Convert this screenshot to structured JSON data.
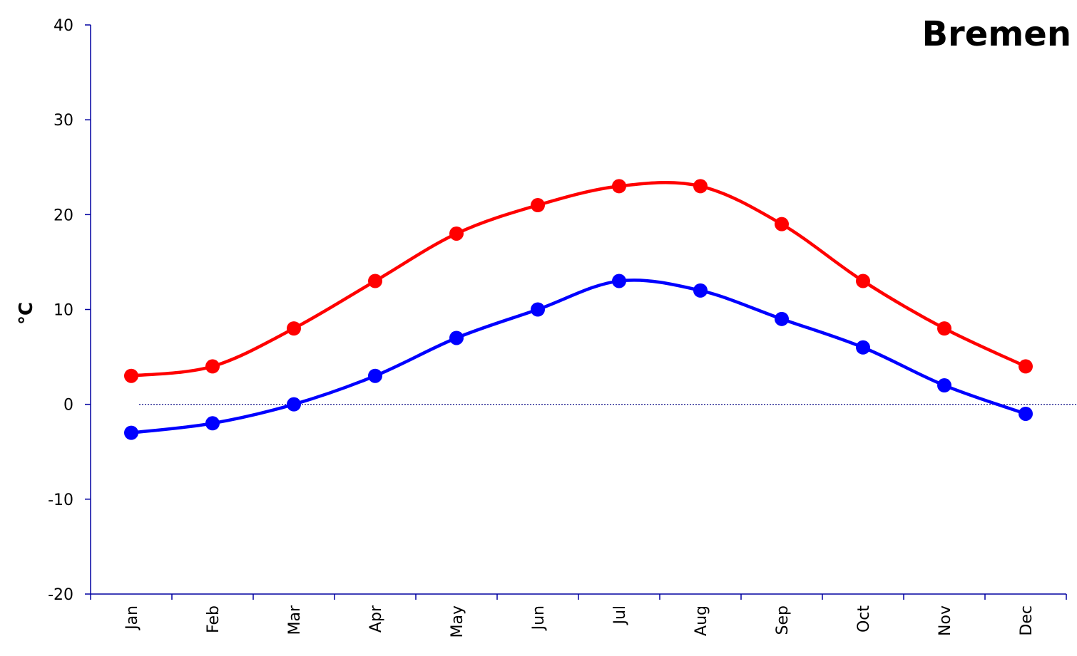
{
  "chart_data": {
    "type": "line",
    "title": "Bremen",
    "xlabel": "",
    "ylabel": "°C",
    "categories": [
      "Jan",
      "Feb",
      "Mar",
      "Apr",
      "May",
      "Jun",
      "Jul",
      "Aug",
      "Sep",
      "Oct",
      "Nov",
      "Dec"
    ],
    "ylim": [
      -20,
      40
    ],
    "yticks": [
      -20,
      -10,
      0,
      10,
      20,
      30,
      40
    ],
    "grid": false,
    "zero_line": true,
    "smooth": true,
    "series": [
      {
        "values": [
          3,
          4,
          8,
          13,
          18,
          21,
          23,
          23,
          19,
          13,
          8,
          4
        ],
        "color": "#ff0000"
      },
      {
        "values": [
          -3,
          -2,
          0,
          3,
          7,
          10,
          13,
          12,
          9,
          6,
          2,
          -1
        ],
        "color": "#0000ff"
      }
    ]
  }
}
